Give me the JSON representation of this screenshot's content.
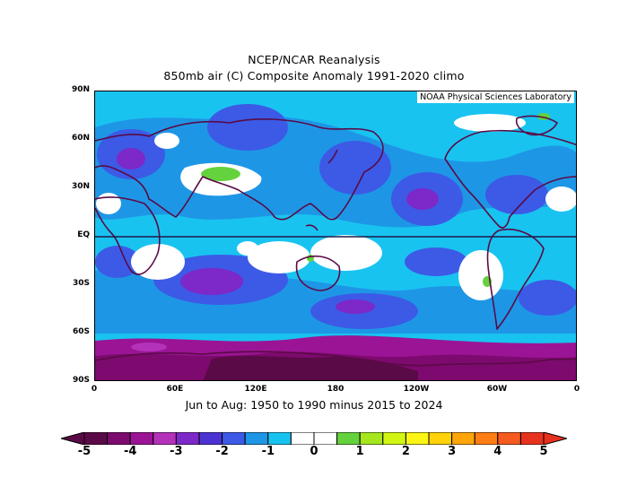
{
  "title_line1": "NCEP/NCAR Reanalysis",
  "title_line2": "850mb air (C) Composite Anomaly 1991-2020 climo",
  "credit": "NOAA Physical Sciences Laboratory",
  "subtitle": "Jun to Aug: 1950 to 1990 minus 2015 to 2024",
  "lat_labels": [
    "90N",
    "60N",
    "30N",
    "EQ",
    "30S",
    "60S",
    "90S"
  ],
  "lon_labels": [
    "0",
    "60E",
    "120E",
    "180",
    "120W",
    "60W",
    "0"
  ],
  "colorbar_labels": [
    "-5",
    "-4",
    "-3",
    "-2",
    "-1",
    "0",
    "1",
    "2",
    "3",
    "4",
    "5"
  ],
  "colorbar_colors": [
    "#5a0a46",
    "#7d0a6e",
    "#9b1495",
    "#b432b9",
    "#7d28c8",
    "#4b32d2",
    "#3c5ae6",
    "#1e96e6",
    "#19c3f0",
    "#ffffff",
    "#ffffff",
    "#64d23c",
    "#a5e61e",
    "#d2f514",
    "#faf514",
    "#ffd20a",
    "#ffa50a",
    "#ff7d14",
    "#f55a1e",
    "#e6321e"
  ],
  "map_colors": {
    "dark_purple": "#5a0a46",
    "magenta": "#9b1495",
    "violet": "#7d28c8",
    "blue": "#4b32d2",
    "mid_blue": "#3c5ae6",
    "light_blue": "#1e96e6",
    "cyan": "#19c3f0",
    "white": "#ffffff",
    "green": "#64d23c",
    "coast": "#5a0a46"
  }
}
